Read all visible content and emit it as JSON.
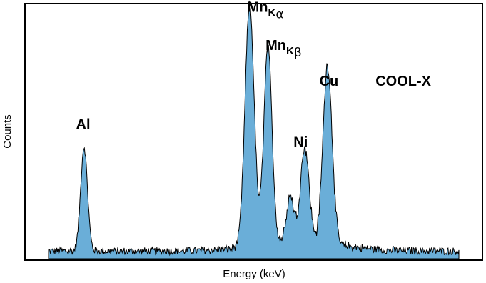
{
  "chart_data": {
    "type": "area",
    "xlabel": "Energy (keV)",
    "ylabel": "Counts",
    "grid": false,
    "legend": "none",
    "fill_color": "#6aaed8",
    "line_color": "#000000",
    "ylim": [
      0,
      100
    ],
    "xlim": [
      0,
      100
    ],
    "baseline_noise": 2.5,
    "peaks": [
      {
        "center": 12.8,
        "height": 41,
        "width": 0.75
      },
      {
        "center": 49.1,
        "height": 95,
        "width": 1.0
      },
      {
        "center": 53.1,
        "height": 77,
        "width": 0.9
      },
      {
        "center": 58.0,
        "height": 18,
        "width": 0.8
      },
      {
        "center": 61.2,
        "height": 37,
        "width": 0.95
      },
      {
        "center": 66.2,
        "height": 70,
        "width": 1.0
      }
    ],
    "annotations": [
      {
        "id": "al",
        "text": "Al",
        "x": 12.6,
        "y": 51
      },
      {
        "id": "mnka",
        "text": "Mn",
        "sub": "K",
        "greek": "α",
        "x": 48.6,
        "y": 97
      },
      {
        "id": "mnkb",
        "text": "Mn",
        "sub": "K",
        "greek": "β",
        "x": 52.6,
        "y": 82
      },
      {
        "id": "ni",
        "text": "Ni",
        "x": 60.3,
        "y": 44
      },
      {
        "id": "cu",
        "text": "Cu",
        "x": 66.5,
        "y": 68
      },
      {
        "id": "coolx",
        "text": "COOL-X",
        "x": 82.8,
        "y": 68
      }
    ]
  }
}
